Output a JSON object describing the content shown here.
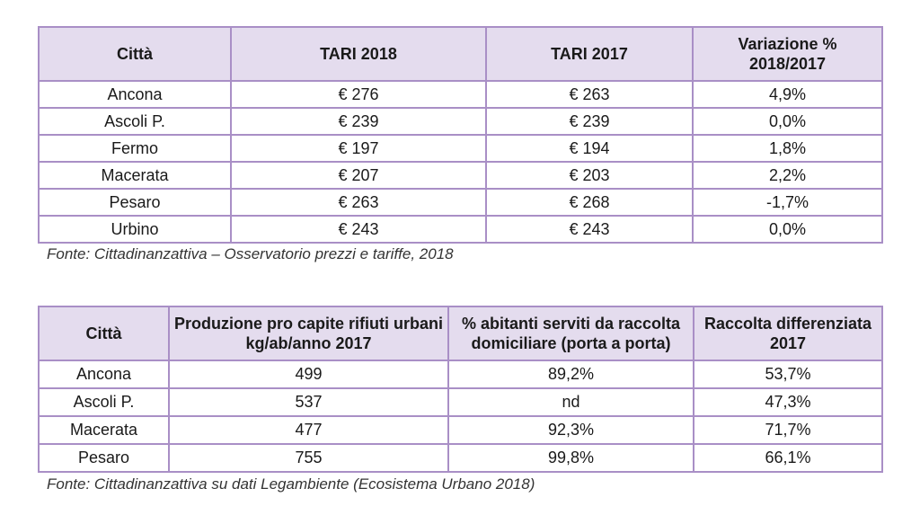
{
  "table1": {
    "headers": [
      "Città",
      "TARI 2018",
      "TARI 2017",
      "Variazione %\n2018/2017"
    ],
    "rows": [
      [
        "Ancona",
        "€ 276",
        "€ 263",
        "4,9%"
      ],
      [
        "Ascoli P.",
        "€ 239",
        "€ 239",
        "0,0%"
      ],
      [
        "Fermo",
        "€ 197",
        "€ 194",
        "1,8%"
      ],
      [
        "Macerata",
        "€ 207",
        "€ 203",
        "2,2%"
      ],
      [
        "Pesaro",
        "€ 263",
        "€ 268",
        "-1,7%"
      ],
      [
        "Urbino",
        "€ 243",
        "€ 243",
        "0,0%"
      ]
    ],
    "source": "Fonte: Cittadinanzattiva – Osservatorio prezzi e tariffe, 2018"
  },
  "table2": {
    "headers": [
      "Città",
      "Produzione pro capite rifiuti urbani\nkg/ab/anno 2017",
      "% abitanti serviti da raccolta\ndomiciliare (porta a porta)",
      "Raccolta differenziata\n2017"
    ],
    "rows": [
      [
        "Ancona",
        "499",
        "89,2%",
        "53,7%"
      ],
      [
        "Ascoli P.",
        "537",
        "nd",
        "47,3%"
      ],
      [
        "Macerata",
        "477",
        "92,3%",
        "71,7%"
      ],
      [
        "Pesaro",
        "755",
        "99,8%",
        "66,1%"
      ]
    ],
    "source": "Fonte: Cittadinanzattiva su dati Legambiente (Ecosistema Urbano 2018)"
  }
}
